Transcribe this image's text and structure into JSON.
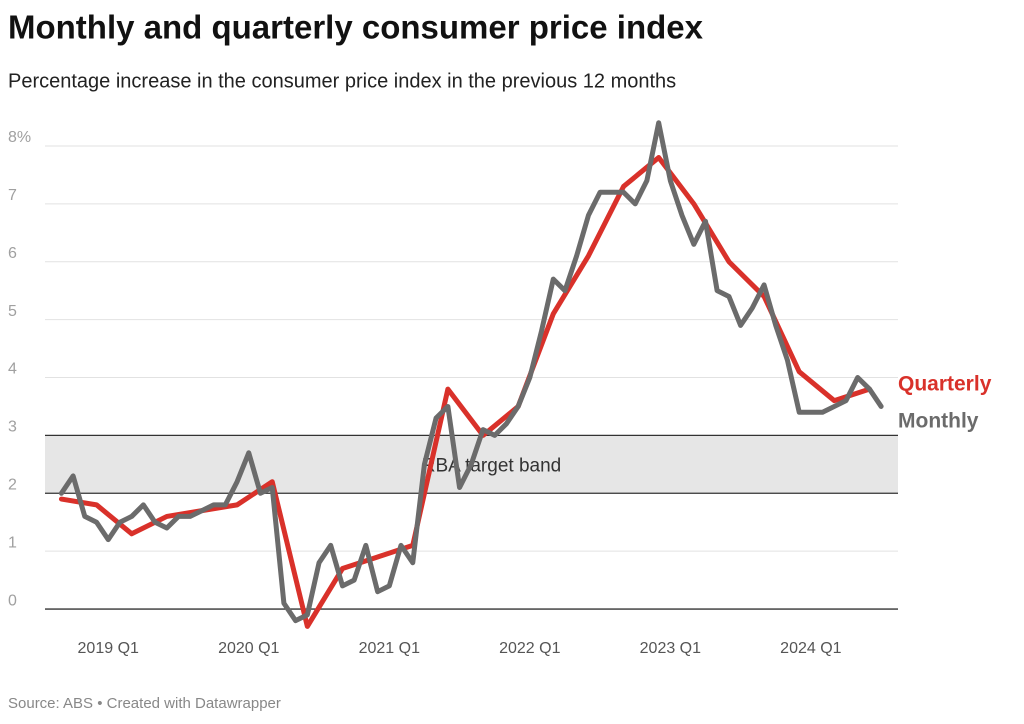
{
  "chart_data": {
    "type": "line",
    "title": "Monthly and quarterly consumer price index",
    "subtitle": "Percentage increase in the consumer price index in the previous 12 months",
    "source": "Source: ABS • Created with Datawrapper",
    "xlim": [
      2018.55,
      2024.62
    ],
    "xticks": [
      {
        "value": 2019,
        "label": "2019 Q1"
      },
      {
        "value": 2020,
        "label": "2020 Q1"
      },
      {
        "value": 2021,
        "label": "2021 Q1"
      },
      {
        "value": 2022,
        "label": "2022 Q1"
      },
      {
        "value": 2023,
        "label": "2023 Q1"
      },
      {
        "value": 2024,
        "label": "2024 Q1"
      }
    ],
    "ylim": [
      -0.5,
      8.5
    ],
    "yticks": [
      0,
      1,
      2,
      3,
      4,
      5,
      6,
      7,
      {
        "value": 8,
        "label": "8%"
      }
    ],
    "grid": true,
    "target_band": {
      "label": "RBA target band",
      "range": [
        2,
        3
      ],
      "color": "#e6e6e6"
    },
    "series": [
      {
        "name": "Quarterly",
        "color": "#d9312a",
        "x": [
          2018.667,
          2018.917,
          2019.167,
          2019.417,
          2019.667,
          2019.917,
          2020.167,
          2020.417,
          2020.667,
          2020.917,
          2021.167,
          2021.417,
          2021.667,
          2021.917,
          2022.167,
          2022.417,
          2022.667,
          2022.917,
          2023.167,
          2023.417,
          2023.667,
          2023.917,
          2024.167,
          2024.417
        ],
        "values": [
          1.9,
          1.8,
          1.3,
          1.6,
          1.7,
          1.8,
          2.2,
          -0.3,
          0.7,
          0.9,
          1.1,
          3.8,
          3.0,
          3.5,
          5.1,
          6.1,
          7.3,
          7.8,
          7.0,
          6.0,
          5.4,
          4.1,
          3.6,
          3.8
        ]
      },
      {
        "name": "Monthly",
        "color": "#6b6b6b",
        "x": [
          2018.667,
          2018.75,
          2018.833,
          2018.917,
          2019,
          2019.083,
          2019.167,
          2019.25,
          2019.333,
          2019.417,
          2019.5,
          2019.583,
          2019.667,
          2019.75,
          2019.833,
          2019.917,
          2020,
          2020.083,
          2020.167,
          2020.25,
          2020.333,
          2020.417,
          2020.5,
          2020.583,
          2020.667,
          2020.75,
          2020.833,
          2020.917,
          2021,
          2021.083,
          2021.167,
          2021.25,
          2021.333,
          2021.417,
          2021.5,
          2021.583,
          2021.667,
          2021.75,
          2021.833,
          2021.917,
          2022,
          2022.083,
          2022.167,
          2022.25,
          2022.333,
          2022.417,
          2022.5,
          2022.583,
          2022.667,
          2022.75,
          2022.833,
          2022.917,
          2023,
          2023.083,
          2023.167,
          2023.25,
          2023.333,
          2023.417,
          2023.5,
          2023.583,
          2023.667,
          2023.75,
          2023.833,
          2023.917,
          2024,
          2024.083,
          2024.167,
          2024.25,
          2024.333,
          2024.417,
          2024.5
        ],
        "values": [
          2.0,
          2.3,
          1.6,
          1.5,
          1.2,
          1.5,
          1.6,
          1.8,
          1.5,
          1.4,
          1.6,
          1.6,
          1.7,
          1.8,
          1.8,
          2.2,
          2.7,
          2.0,
          2.1,
          0.1,
          -0.2,
          -0.1,
          0.8,
          1.1,
          0.4,
          0.5,
          1.1,
          0.3,
          0.4,
          1.1,
          0.8,
          2.5,
          3.3,
          3.5,
          2.1,
          2.5,
          3.1,
          3.0,
          3.2,
          3.5,
          4.0,
          4.8,
          5.7,
          5.5,
          6.1,
          6.8,
          7.2,
          7.2,
          7.2,
          7.0,
          7.4,
          8.4,
          7.4,
          6.8,
          6.3,
          6.7,
          5.5,
          5.4,
          4.9,
          5.2,
          5.6,
          4.9,
          4.3,
          3.4,
          3.4,
          3.4,
          3.5,
          3.6,
          4.0,
          3.8,
          3.5
        ]
      }
    ]
  }
}
